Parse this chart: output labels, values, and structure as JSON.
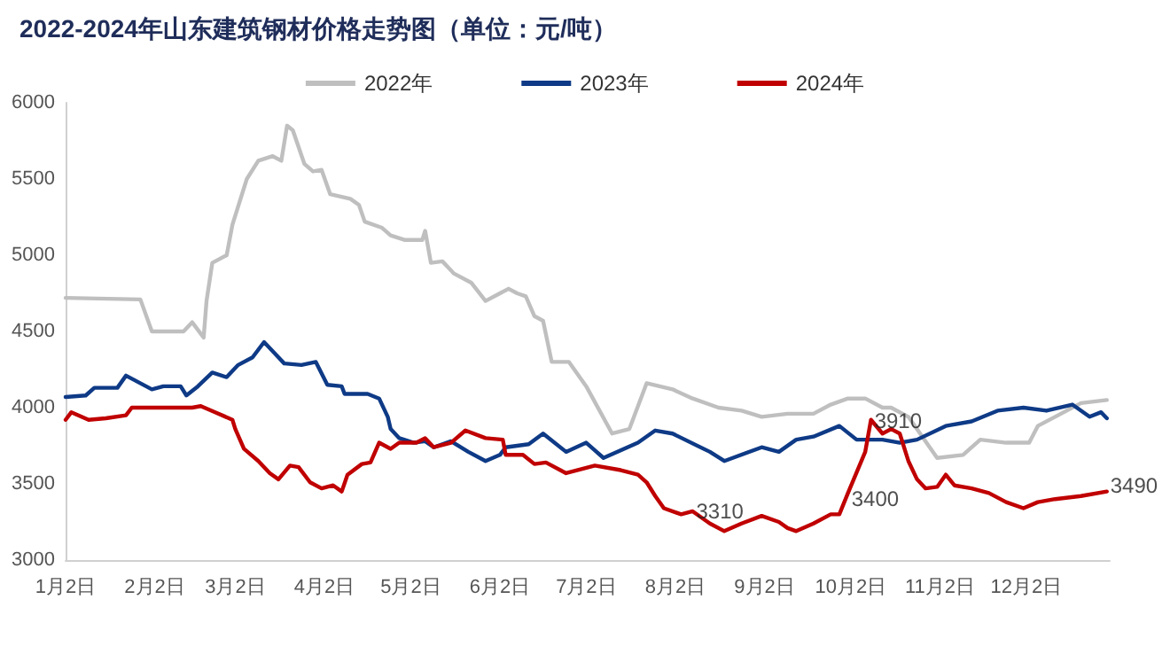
{
  "chart_data": {
    "type": "line",
    "title": "2022-2024年山东建筑钢材价格走势图（单位：元/吨）",
    "xlim": [
      "--01-02",
      "--12-31"
    ],
    "xticks": [
      {
        "value": "--01-02",
        "label": "1月2日"
      },
      {
        "value": "--02-02",
        "label": "2月2日"
      },
      {
        "value": "--03-02",
        "label": "3月2日"
      },
      {
        "value": "--04-02",
        "label": "4月2日"
      },
      {
        "value": "--05-02",
        "label": "5月2日"
      },
      {
        "value": "--06-02",
        "label": "6月2日"
      },
      {
        "value": "--07-02",
        "label": "7月2日"
      },
      {
        "value": "--08-02",
        "label": "8月2日"
      },
      {
        "value": "--09-02",
        "label": "9月2日"
      },
      {
        "value": "--10-02",
        "label": "10月2日"
      },
      {
        "value": "--11-02",
        "label": "11月2日"
      },
      {
        "value": "--12-02",
        "label": "12月2日"
      }
    ],
    "ylim": [
      3000,
      6000
    ],
    "yticks": [
      3000,
      3500,
      4000,
      4500,
      5000,
      5500,
      6000
    ],
    "grid": false,
    "legend": "top",
    "marker": "none",
    "line_style": "solid",
    "series": [
      {
        "name": "2022年",
        "color": "#bfbfbf",
        "x": [
          "--01-02",
          "--01-28",
          "--02-01",
          "--02-12",
          "--02-15",
          "--02-19",
          "--02-20",
          "--02-22",
          "--02-27",
          "--03-01",
          "--03-03",
          "--03-06",
          "--03-10",
          "--03-15",
          "--03-18",
          "--03-20",
          "--03-22",
          "--03-26",
          "--03-29",
          "--04-01",
          "--04-04",
          "--04-11",
          "--04-14",
          "--04-16",
          "--04-22",
          "--04-25",
          "--04-30",
          "--05-06",
          "--05-07",
          "--05-09",
          "--05-13",
          "--05-17",
          "--05-23",
          "--05-28",
          "--06-02",
          "--06-05",
          "--06-08",
          "--06-11",
          "--06-14",
          "--06-17",
          "--06-20",
          "--06-26",
          "--07-02",
          "--07-11",
          "--07-17",
          "--07-23",
          "--08-01",
          "--08-08",
          "--08-17",
          "--08-25",
          "--09-01",
          "--09-10",
          "--09-19",
          "--09-25",
          "--10-01",
          "--10-07",
          "--10-13",
          "--10-16",
          "--10-22",
          "--11-01",
          "--11-10",
          "--11-16",
          "--11-25",
          "--12-03",
          "--12-06",
          "--12-12",
          "--12-21",
          "--12-30"
        ],
        "values": [
          4720,
          4710,
          4500,
          4500,
          4560,
          4460,
          4700,
          4950,
          5000,
          5200,
          5320,
          5500,
          5620,
          5650,
          5620,
          5850,
          5820,
          5600,
          5550,
          5560,
          5400,
          5370,
          5330,
          5220,
          5180,
          5130,
          5100,
          5100,
          5160,
          4950,
          4960,
          4880,
          4820,
          4700,
          4750,
          4780,
          4750,
          4730,
          4600,
          4570,
          4300,
          4300,
          4140,
          3830,
          3860,
          4160,
          4120,
          4060,
          4000,
          3980,
          3940,
          3960,
          3960,
          4020,
          4060,
          4060,
          4000,
          4000,
          3940,
          3670,
          3690,
          3790,
          3770,
          3770,
          3880,
          3940,
          4030,
          4050
        ]
      },
      {
        "name": "2023年",
        "color": "#0e3a86",
        "x": [
          "--01-02",
          "--01-09",
          "--01-12",
          "--01-20",
          "--01-23",
          "--02-01",
          "--02-05",
          "--02-11",
          "--02-13",
          "--02-17",
          "--02-22",
          "--02-27",
          "--03-03",
          "--03-08",
          "--03-12",
          "--03-16",
          "--03-19",
          "--03-25",
          "--03-30",
          "--04-03",
          "--04-08",
          "--04-09",
          "--04-17",
          "--04-21",
          "--04-24",
          "--04-25",
          "--04-28",
          "--05-03",
          "--05-07",
          "--05-10",
          "--05-16",
          "--05-22",
          "--05-28",
          "--06-02",
          "--06-04",
          "--06-12",
          "--06-17",
          "--06-25",
          "--07-02",
          "--07-08",
          "--07-20",
          "--07-26",
          "--08-01",
          "--08-14",
          "--08-19",
          "--09-01",
          "--09-07",
          "--09-13",
          "--09-19",
          "--09-28",
          "--10-04",
          "--10-13",
          "--10-19",
          "--10-25",
          "--11-04",
          "--11-13",
          "--11-22",
          "--12-01",
          "--12-09",
          "--12-18",
          "--12-24",
          "--12-28",
          "--12-30"
        ],
        "values": [
          4070,
          4080,
          4130,
          4130,
          4210,
          4120,
          4140,
          4140,
          4080,
          4140,
          4230,
          4200,
          4280,
          4330,
          4430,
          4350,
          4290,
          4280,
          4300,
          4150,
          4140,
          4090,
          4090,
          4060,
          3940,
          3860,
          3800,
          3770,
          3780,
          3740,
          3780,
          3710,
          3650,
          3690,
          3740,
          3760,
          3830,
          3710,
          3770,
          3670,
          3770,
          3850,
          3830,
          3710,
          3650,
          3740,
          3710,
          3790,
          3810,
          3880,
          3790,
          3790,
          3770,
          3790,
          3880,
          3910,
          3980,
          4000,
          3980,
          4020,
          3940,
          3970,
          3930
        ]
      },
      {
        "name": "2024年",
        "color": "#c00000",
        "x": [
          "--01-02",
          "--01-04",
          "--01-10",
          "--01-16",
          "--01-23",
          "--01-25",
          "--02-15",
          "--02-18",
          "--02-23",
          "--03-01",
          "--03-02",
          "--03-05",
          "--03-10",
          "--03-14",
          "--03-17",
          "--03-21",
          "--03-24",
          "--03-28",
          "--04-01",
          "--04-05",
          "--04-08",
          "--04-10",
          "--04-15",
          "--04-18",
          "--04-21",
          "--04-25",
          "--04-28",
          "--05-04",
          "--05-07",
          "--05-10",
          "--05-16",
          "--05-21",
          "--05-28",
          "--06-03",
          "--06-04",
          "--06-10",
          "--06-14",
          "--06-18",
          "--06-25",
          "--07-05",
          "--07-14",
          "--07-20",
          "--07-23",
          "--07-26",
          "--07-29",
          "--08-04",
          "--08-08",
          "--08-14",
          "--08-19",
          "--08-25",
          "--09-01",
          "--09-07",
          "--09-10",
          "--09-13",
          "--09-19",
          "--09-25",
          "--09-28",
          "--10-01",
          "--10-07",
          "--10-09",
          "--10-13",
          "--10-16",
          "--10-19",
          "--10-22",
          "--10-25",
          "--10-28",
          "--11-01",
          "--11-04",
          "--11-07",
          "--11-13",
          "--11-19",
          "--11-25",
          "--12-01",
          "--12-06",
          "--12-12",
          "--12-21",
          "--12-30"
        ],
        "values": [
          3920,
          3970,
          3920,
          3930,
          3950,
          4000,
          4000,
          4010,
          3970,
          3920,
          3860,
          3730,
          3650,
          3570,
          3530,
          3620,
          3610,
          3510,
          3470,
          3490,
          3450,
          3560,
          3630,
          3640,
          3770,
          3730,
          3770,
          3770,
          3800,
          3740,
          3770,
          3850,
          3800,
          3790,
          3690,
          3690,
          3630,
          3640,
          3570,
          3620,
          3590,
          3560,
          3510,
          3420,
          3340,
          3300,
          3320,
          3240,
          3190,
          3240,
          3290,
          3250,
          3210,
          3190,
          3240,
          3300,
          3300,
          3440,
          3710,
          3920,
          3830,
          3860,
          3830,
          3650,
          3530,
          3470,
          3480,
          3560,
          3490,
          3470,
          3440,
          3380,
          3340,
          3380,
          3400,
          3420,
          3450
        ]
      }
    ],
    "annotations": [
      {
        "text": "3310",
        "x": "--08-08",
        "y": 3320
      },
      {
        "text": "3400",
        "x": "--10-01",
        "y": 3400
      },
      {
        "text": "3910",
        "x": "--10-09",
        "y": 3910
      },
      {
        "text": "3490",
        "x": "--12-30",
        "y": 3490
      }
    ]
  }
}
